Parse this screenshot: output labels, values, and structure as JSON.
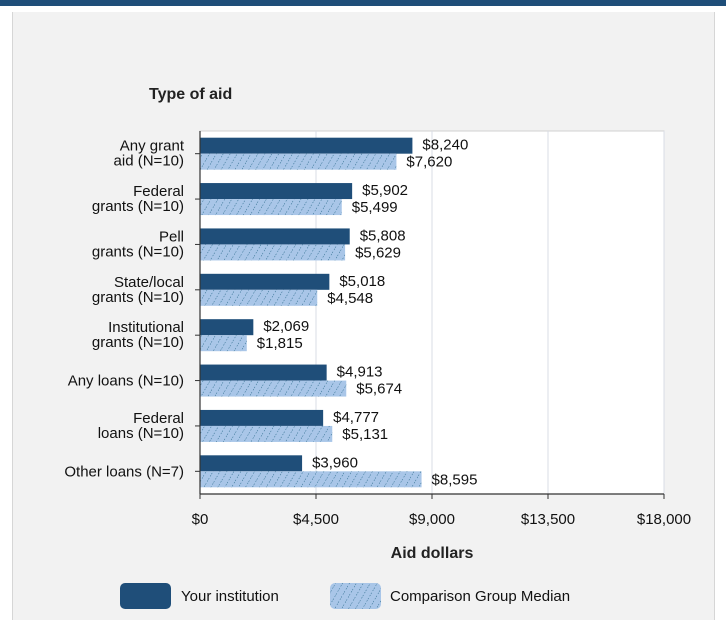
{
  "colors": {
    "your_institution": "#1f4e79",
    "comparison": "#a9c6e8",
    "comparison_hatch": "#2a6a8a",
    "plot_bg": "#ffffff",
    "panel_bg": "#f2f2f2"
  },
  "chart_data": {
    "type": "bar",
    "orientation": "horizontal",
    "title": "",
    "ylabel": "Type of aid",
    "xlabel": "Aid dollars",
    "xlim": [
      0,
      18000
    ],
    "x_ticks": [
      0,
      4500,
      9000,
      13500,
      18000
    ],
    "x_tick_labels": [
      "$0",
      "$4,500",
      "$9,000",
      "$13,500",
      "$18,000"
    ],
    "grid": "vertical",
    "legend_position": "bottom",
    "categories": [
      [
        "Any grant",
        "aid (N=10)"
      ],
      [
        "Federal",
        "grants (N=10)"
      ],
      [
        "Pell",
        "grants (N=10)"
      ],
      [
        "State/local",
        "grants (N=10)"
      ],
      [
        "Institutional",
        "grants (N=10)"
      ],
      [
        "Any loans (N=10)"
      ],
      [
        "Federal",
        "loans (N=10)"
      ],
      [
        "Other loans (N=7)"
      ]
    ],
    "series": [
      {
        "name": "Your institution",
        "values": [
          8240,
          5902,
          5808,
          5018,
          2069,
          4913,
          4777,
          3960
        ],
        "labels": [
          "$8,240",
          "$5,902",
          "$5,808",
          "$5,018",
          "$2,069",
          "$4,913",
          "$4,777",
          "$3,960"
        ]
      },
      {
        "name": "Comparison Group Median",
        "values": [
          7620,
          5499,
          5629,
          4548,
          1815,
          5674,
          5131,
          8595
        ],
        "labels": [
          "$7,620",
          "$5,499",
          "$5,629",
          "$4,548",
          "$1,815",
          "$5,674",
          "$5,131",
          "$8,595"
        ]
      }
    ]
  }
}
